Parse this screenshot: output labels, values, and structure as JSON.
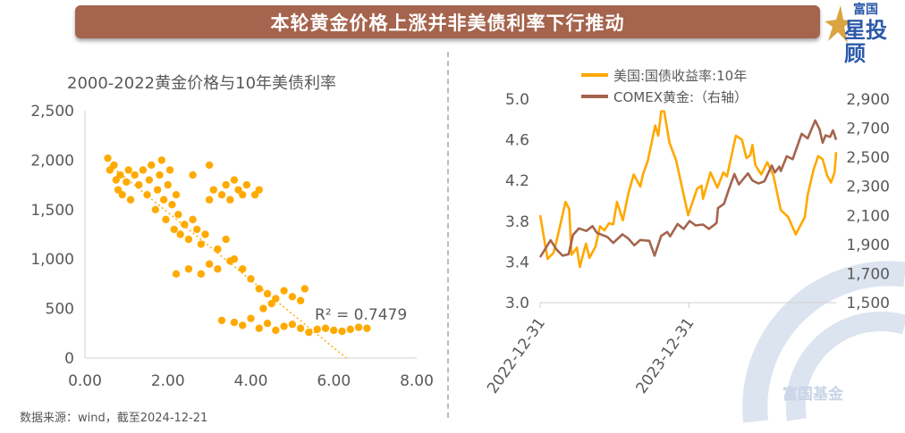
{
  "header": {
    "title": "本轮黄金价格上涨并非美债利率下行推动",
    "logo_top": "富国",
    "logo_main": "星投顾"
  },
  "watermark": "富国基金",
  "footer": "数据来源：wind，截至2024-12-21",
  "colors": {
    "title_bg": "#A5644D",
    "yield": "#FFA800",
    "gold": "#A5644D",
    "scatter": "#FFAA00"
  },
  "chart_data": [
    {
      "type": "scatter",
      "title": "2000-2022黄金价格与10年美债利率",
      "xlim": [
        0,
        8
      ],
      "ylim": [
        0,
        2500
      ],
      "xticks": [
        "0.00",
        "2.00",
        "4.00",
        "6.00",
        "8.00"
      ],
      "yticks": [
        "0",
        "500",
        "1,000",
        "1,500",
        "2,000",
        "2,500"
      ],
      "annotation": "R² = 0.7479",
      "trendline": {
        "from": [
          0.6,
          1950
        ],
        "to": [
          6.3,
          0
        ]
      },
      "points": [
        [
          0.55,
          2020
        ],
        [
          0.6,
          1900
        ],
        [
          0.7,
          1950
        ],
        [
          0.75,
          1800
        ],
        [
          0.8,
          1700
        ],
        [
          0.85,
          1850
        ],
        [
          0.9,
          1650
        ],
        [
          1.0,
          1780
        ],
        [
          1.05,
          1900
        ],
        [
          1.1,
          1600
        ],
        [
          1.2,
          1850
        ],
        [
          1.3,
          1750
        ],
        [
          1.4,
          1900
        ],
        [
          1.5,
          1650
        ],
        [
          1.55,
          1800
        ],
        [
          1.6,
          1950
        ],
        [
          1.7,
          1500
        ],
        [
          1.75,
          1700
        ],
        [
          1.8,
          1850
        ],
        [
          1.85,
          2000
        ],
        [
          1.9,
          1600
        ],
        [
          1.95,
          1400
        ],
        [
          2.0,
          1750
        ],
        [
          2.05,
          1900
        ],
        [
          2.1,
          1550
        ],
        [
          2.15,
          1300
        ],
        [
          2.2,
          1650
        ],
        [
          2.25,
          1450
        ],
        [
          2.3,
          1250
        ],
        [
          2.4,
          1350
        ],
        [
          2.5,
          1200
        ],
        [
          2.6,
          1400
        ],
        [
          2.6,
          1850
        ],
        [
          2.7,
          1300
        ],
        [
          2.8,
          1150
        ],
        [
          2.9,
          1250
        ],
        [
          3.0,
          1600
        ],
        [
          3.0,
          1950
        ],
        [
          3.1,
          1700
        ],
        [
          3.2,
          1100
        ],
        [
          3.3,
          1650
        ],
        [
          3.4,
          1750
        ],
        [
          3.5,
          1600
        ],
        [
          3.6,
          1800
        ],
        [
          3.7,
          1700
        ],
        [
          3.8,
          1650
        ],
        [
          3.9,
          1750
        ],
        [
          4.1,
          1650
        ],
        [
          4.2,
          1700
        ],
        [
          3.4,
          1200
        ],
        [
          3.6,
          1000
        ],
        [
          2.2,
          850
        ],
        [
          2.5,
          900
        ],
        [
          2.8,
          850
        ],
        [
          3.0,
          950
        ],
        [
          3.2,
          900
        ],
        [
          3.5,
          980
        ],
        [
          3.8,
          900
        ],
        [
          4.0,
          800
        ],
        [
          4.2,
          700
        ],
        [
          4.4,
          650
        ],
        [
          4.6,
          600
        ],
        [
          4.8,
          680
        ],
        [
          5.0,
          620
        ],
        [
          5.2,
          580
        ],
        [
          5.3,
          700
        ],
        [
          4.5,
          550
        ],
        [
          4.3,
          500
        ],
        [
          3.3,
          380
        ],
        [
          3.6,
          360
        ],
        [
          4.0,
          400
        ],
        [
          4.4,
          350
        ],
        [
          4.8,
          320
        ],
        [
          5.2,
          300
        ],
        [
          5.6,
          290
        ],
        [
          6.0,
          280
        ],
        [
          6.4,
          290
        ],
        [
          6.8,
          300
        ],
        [
          3.8,
          330
        ],
        [
          4.2,
          300
        ],
        [
          4.6,
          280
        ],
        [
          5.0,
          340
        ],
        [
          5.4,
          260
        ],
        [
          5.8,
          300
        ],
        [
          6.2,
          270
        ],
        [
          6.6,
          310
        ]
      ]
    },
    {
      "type": "line",
      "x_unit": "months since 2022-12-31",
      "xticks": [
        "2022-12-31",
        "2023-12-31"
      ],
      "xtick_values": [
        0,
        12
      ],
      "xlim": [
        0,
        23.86
      ],
      "ylim_left": [
        3.0,
        5.0
      ],
      "yticks_left": [
        "3.0",
        "3.4",
        "3.8",
        "4.2",
        "4.6",
        "5.0"
      ],
      "ylim_right": [
        1500,
        2900
      ],
      "yticks_right": [
        "1,500",
        "1,700",
        "1,900",
        "2,100",
        "2,300",
        "2,500",
        "2,700",
        "2,900"
      ],
      "series": [
        {
          "name": "美国:国债收益率:10年",
          "axis": "left",
          "points": [
            [
              0,
              3.86
            ],
            [
              0.6,
              3.43
            ],
            [
              1.08,
              3.49
            ],
            [
              1.33,
              3.61
            ],
            [
              2.05,
              3.99
            ],
            [
              2.34,
              3.92
            ],
            [
              2.53,
              3.47
            ],
            [
              2.96,
              3.54
            ],
            [
              3.2,
              3.35
            ],
            [
              3.69,
              3.58
            ],
            [
              3.98,
              3.44
            ],
            [
              4.46,
              3.55
            ],
            [
              4.82,
              3.75
            ],
            [
              5.18,
              3.71
            ],
            [
              5.54,
              3.78
            ],
            [
              5.9,
              3.77
            ],
            [
              6.19,
              3.99
            ],
            [
              6.67,
              3.81
            ],
            [
              7.11,
              4.07
            ],
            [
              7.54,
              4.26
            ],
            [
              8.07,
              4.14
            ],
            [
              8.31,
              4.27
            ],
            [
              8.67,
              4.39
            ],
            [
              9.28,
              4.74
            ],
            [
              9.52,
              4.64
            ],
            [
              9.76,
              4.88
            ],
            [
              10.0,
              4.88
            ],
            [
              10.43,
              4.57
            ],
            [
              10.96,
              4.4
            ],
            [
              11.93,
              3.86
            ],
            [
              12.29,
              3.99
            ],
            [
              12.65,
              4.12
            ],
            [
              13.01,
              4.15
            ],
            [
              13.13,
              4.02
            ],
            [
              13.73,
              4.28
            ],
            [
              14.29,
              4.13
            ],
            [
              14.77,
              4.28
            ],
            [
              15.06,
              4.24
            ],
            [
              15.78,
              4.64
            ],
            [
              16.27,
              4.6
            ],
            [
              16.63,
              4.42
            ],
            [
              16.94,
              4.45
            ],
            [
              17.11,
              4.55
            ],
            [
              17.35,
              4.35
            ],
            [
              17.83,
              4.26
            ],
            [
              18.31,
              4.38
            ],
            [
              18.8,
              4.25
            ],
            [
              19.4,
              3.91
            ],
            [
              20.0,
              3.84
            ],
            [
              20.6,
              3.67
            ],
            [
              21.33,
              3.84
            ],
            [
              21.57,
              4.06
            ],
            [
              22.05,
              4.31
            ],
            [
              22.41,
              4.44
            ],
            [
              22.77,
              4.41
            ],
            [
              23.13,
              4.25
            ],
            [
              23.45,
              4.18
            ],
            [
              23.73,
              4.28
            ],
            [
              23.86,
              4.48
            ]
          ]
        },
        {
          "name": "COMEX黄金:（右轴）",
          "axis": "right",
          "points": [
            [
              0,
              1813
            ],
            [
              0.84,
              1929
            ],
            [
              1.33,
              1864
            ],
            [
              1.81,
              1823
            ],
            [
              2.29,
              1833
            ],
            [
              2.65,
              1966
            ],
            [
              3.13,
              2011
            ],
            [
              3.73,
              1993
            ],
            [
              4.22,
              2027
            ],
            [
              4.58,
              1980
            ],
            [
              5.42,
              1952
            ],
            [
              5.9,
              1911
            ],
            [
              6.63,
              1970
            ],
            [
              7.11,
              1941
            ],
            [
              7.59,
              1894
            ],
            [
              8.07,
              1931
            ],
            [
              8.8,
              1925
            ],
            [
              9.23,
              1823
            ],
            [
              9.76,
              1960
            ],
            [
              10.24,
              1986
            ],
            [
              10.48,
              1956
            ],
            [
              11.08,
              2041
            ],
            [
              11.57,
              2007
            ],
            [
              12.05,
              2062
            ],
            [
              12.53,
              2031
            ],
            [
              13.13,
              2037
            ],
            [
              13.61,
              2007
            ],
            [
              14.22,
              2048
            ],
            [
              14.34,
              2150
            ],
            [
              14.82,
              2180
            ],
            [
              15.18,
              2272
            ],
            [
              15.66,
              2385
            ],
            [
              16.02,
              2313
            ],
            [
              16.75,
              2389
            ],
            [
              17.11,
              2340
            ],
            [
              17.59,
              2320
            ],
            [
              18.07,
              2334
            ],
            [
              18.67,
              2443
            ],
            [
              18.92,
              2395
            ],
            [
              19.28,
              2436
            ],
            [
              19.4,
              2405
            ],
            [
              19.88,
              2507
            ],
            [
              20.36,
              2487
            ],
            [
              21.08,
              2661
            ],
            [
              21.57,
              2630
            ],
            [
              22.17,
              2753
            ],
            [
              22.53,
              2692
            ],
            [
              22.77,
              2600
            ],
            [
              23.01,
              2651
            ],
            [
              23.37,
              2640
            ],
            [
              23.61,
              2685
            ],
            [
              23.86,
              2620
            ]
          ]
        }
      ]
    }
  ]
}
